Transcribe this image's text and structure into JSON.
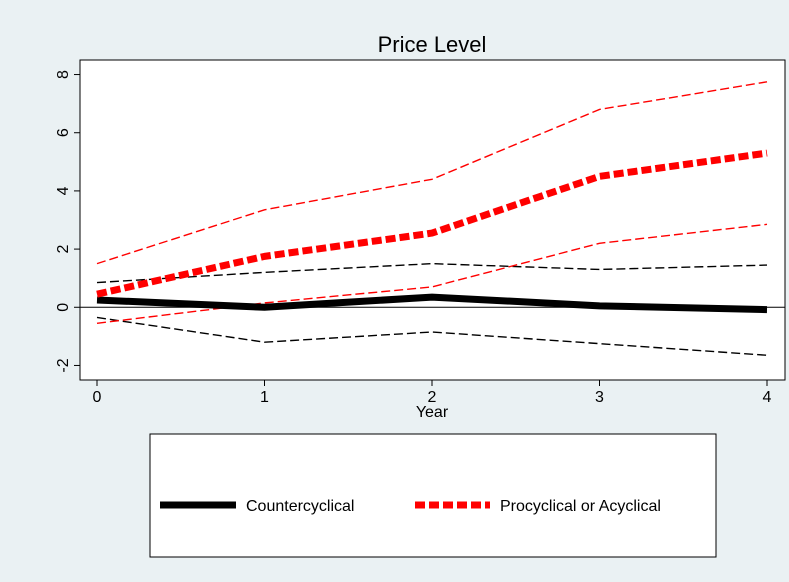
{
  "chart_data": {
    "type": "line",
    "title": "Price Level",
    "xlabel": "Year",
    "ylabel": "",
    "x": [
      0,
      1,
      2,
      3,
      4
    ],
    "xlim": [
      0,
      4
    ],
    "ylim": [
      -2.5,
      8.5
    ],
    "xticks": [
      "0",
      "1",
      "2",
      "3",
      "4"
    ],
    "yticks": [
      "-2",
      "0",
      "2",
      "4",
      "6",
      "8"
    ],
    "ytick_values": [
      -2,
      0,
      2,
      4,
      6,
      8
    ],
    "grid": false,
    "reference_line": 0,
    "legend_position": "bottom",
    "series": [
      {
        "name": "Countercyclical",
        "values": [
          0.25,
          0.0,
          0.35,
          0.05,
          -0.08
        ],
        "color": "#000000",
        "style": "solid-thick"
      },
      {
        "name": "Procyclical or Acyclical",
        "values": [
          0.45,
          1.75,
          2.55,
          4.5,
          5.3
        ],
        "color": "#ff0000",
        "style": "dashed-thick"
      }
    ],
    "bands": [
      {
        "values": [
          0.85,
          1.2,
          1.5,
          1.3,
          1.45
        ],
        "color": "#000000"
      },
      {
        "values": [
          -0.35,
          -1.2,
          -0.85,
          -1.25,
          -1.65
        ],
        "color": "#000000"
      },
      {
        "values": [
          1.5,
          3.35,
          4.4,
          6.8,
          7.75
        ],
        "color": "#ff0000"
      },
      {
        "values": [
          -0.55,
          0.15,
          0.7,
          2.2,
          2.85
        ],
        "color": "#ff0000"
      }
    ]
  }
}
